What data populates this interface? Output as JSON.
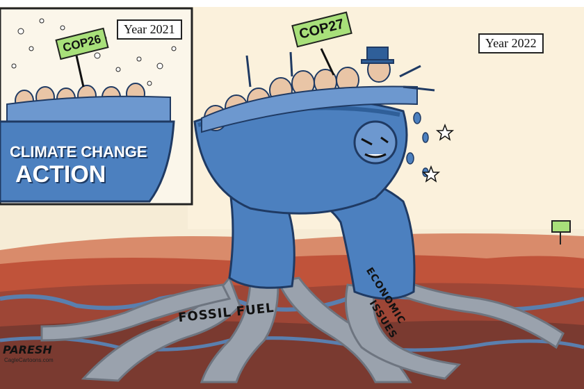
{
  "inset_panel": {
    "sign_text": "COP26",
    "year_label": "Year 2021",
    "podium_line1": "CLIMATE CHANGE",
    "podium_line2": "ACTION"
  },
  "main_panel": {
    "sign_text": "COP27",
    "year_label": "Year 2022"
  },
  "roots": {
    "left_label": "FOSSIL FUEL",
    "right_label_line1": "ECONOMIC",
    "right_label_line2": "ISSUES"
  },
  "credits": {
    "artist": "PARESH",
    "site": "CagleCartoons.com"
  },
  "colors": {
    "sky": "#f6ecd6",
    "ground_red": "#c0533a",
    "ground_brown": "#8a3b2e",
    "bowl_blue": "#4c80bf",
    "bowl_dark": "#2f5f99",
    "root_gray": "#9aa2ad",
    "sign_green": "#a8e07a"
  }
}
